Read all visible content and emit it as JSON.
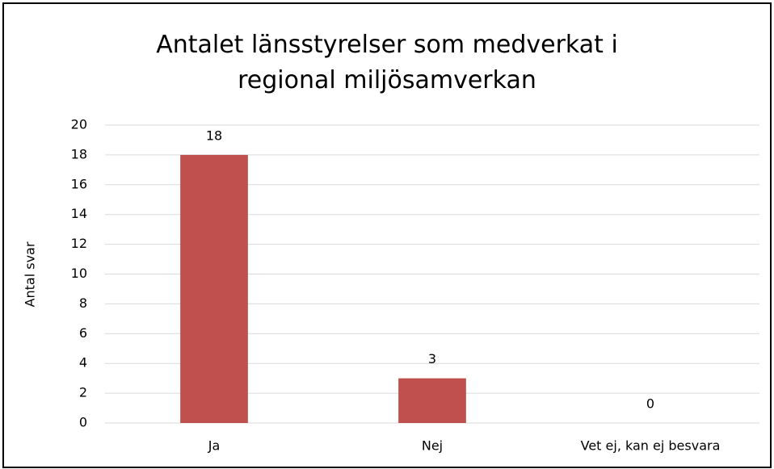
{
  "chart_data": {
    "type": "bar",
    "title": "Antalet länsstyrelser som medverkat i regional miljösamverkan",
    "ylabel": "Antal svar",
    "categories": [
      "Ja",
      "Nej",
      "Vet ej, kan ej besvara"
    ],
    "values": [
      18,
      3,
      0
    ],
    "color": "#c0504d",
    "ylim": [
      0,
      20
    ],
    "yticks": [
      0,
      2,
      4,
      6,
      8,
      10,
      12,
      14,
      16,
      18,
      20
    ],
    "grid": true,
    "data_labels": true
  }
}
